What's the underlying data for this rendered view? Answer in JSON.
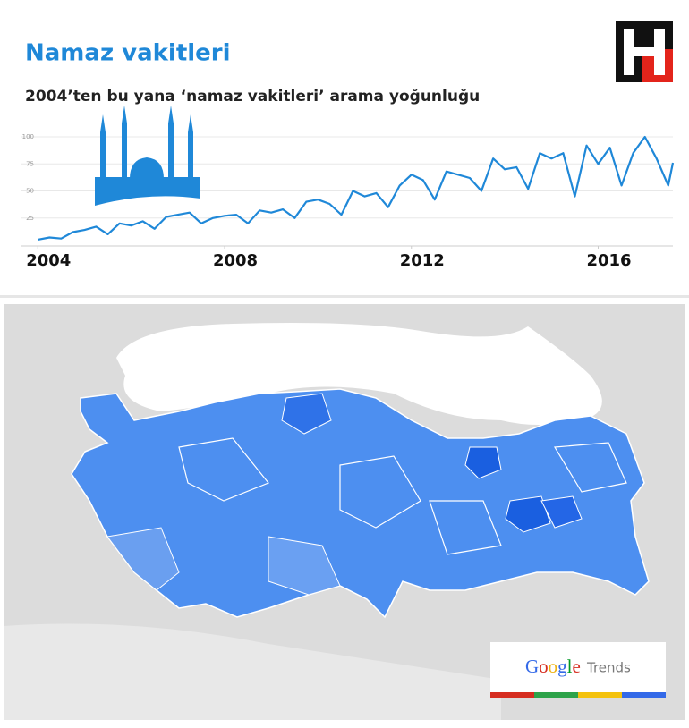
{
  "header": {
    "title": "Namaz vakitleri",
    "subtitle": "2004’ten bu yana ‘namaz vakitleri’ arama yoğunluğu"
  },
  "chart_data": {
    "type": "line",
    "color": "#1f88d8",
    "x": [
      2004.0,
      2004.25,
      2004.5,
      2004.75,
      2005.0,
      2005.25,
      2005.5,
      2005.75,
      2006.0,
      2006.25,
      2006.5,
      2006.75,
      2007.0,
      2007.25,
      2007.5,
      2007.75,
      2008.0,
      2008.25,
      2008.5,
      2008.75,
      2009.0,
      2009.25,
      2009.5,
      2009.75,
      2010.0,
      2010.25,
      2010.5,
      2010.75,
      2011.0,
      2011.25,
      2011.5,
      2011.75,
      2012.0,
      2012.25,
      2012.5,
      2012.75,
      2013.0,
      2013.25,
      2013.5,
      2013.75,
      2014.0,
      2014.25,
      2014.5,
      2014.75,
      2015.0,
      2015.25,
      2015.5,
      2015.75,
      2016.0,
      2016.25,
      2016.5,
      2016.75,
      2017.0,
      2017.25,
      2017.5,
      2017.6
    ],
    "values": [
      5,
      7,
      6,
      12,
      14,
      17,
      10,
      20,
      18,
      22,
      15,
      26,
      28,
      30,
      20,
      25,
      27,
      28,
      20,
      32,
      30,
      33,
      25,
      40,
      42,
      38,
      28,
      50,
      45,
      48,
      35,
      55,
      65,
      60,
      42,
      68,
      65,
      62,
      50,
      80,
      70,
      72,
      52,
      85,
      80,
      85,
      45,
      92,
      75,
      90,
      55,
      85,
      100,
      80,
      55,
      76
    ],
    "xlim": [
      2003.65,
      2017.6
    ],
    "xticks": [
      2004,
      2008,
      2012,
      2016
    ],
    "ylim": [
      0,
      100
    ],
    "yticks": [
      25,
      50,
      75,
      100
    ],
    "grid": true
  },
  "map": {
    "logo": {
      "brand": "Google",
      "product": "Trends"
    }
  }
}
